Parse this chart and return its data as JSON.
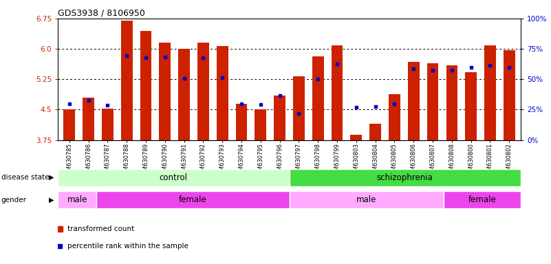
{
  "title": "GDS3938 / 8106950",
  "samples": [
    "GSM630785",
    "GSM630786",
    "GSM630787",
    "GSM630788",
    "GSM630789",
    "GSM630790",
    "GSM630791",
    "GSM630792",
    "GSM630793",
    "GSM630794",
    "GSM630795",
    "GSM630796",
    "GSM630797",
    "GSM630798",
    "GSM630799",
    "GSM630803",
    "GSM630804",
    "GSM630805",
    "GSM630806",
    "GSM630807",
    "GSM630808",
    "GSM630800",
    "GSM630801",
    "GSM630802"
  ],
  "bar_values": [
    4.5,
    4.8,
    4.52,
    6.7,
    6.45,
    6.15,
    6.0,
    6.15,
    6.07,
    4.65,
    4.5,
    4.85,
    5.32,
    5.82,
    6.08,
    3.87,
    4.15,
    4.88,
    5.68,
    5.65,
    5.6,
    5.42,
    6.08,
    5.97
  ],
  "percentile_values": [
    4.65,
    4.72,
    4.6,
    5.83,
    5.78,
    5.8,
    5.27,
    5.78,
    5.28,
    4.65,
    4.63,
    4.85,
    4.4,
    5.25,
    5.62,
    4.55,
    4.58,
    4.65,
    5.5,
    5.48,
    5.47,
    5.55,
    5.6,
    5.55
  ],
  "y_min": 3.75,
  "y_max": 6.75,
  "y_ticks": [
    3.75,
    4.5,
    5.25,
    6.0,
    6.75
  ],
  "right_y_ticks": [
    0,
    25,
    50,
    75,
    100
  ],
  "bar_color": "#cc2200",
  "dot_color": "#0000cc",
  "control_color": "#ccffcc",
  "schizophrenia_color": "#44dd44",
  "male_color": "#ffaaff",
  "female_color": "#ee44ee",
  "grid_color": "#000000",
  "background_color": "#ffffff",
  "gender_groups": [
    {
      "label": "male",
      "start": 0,
      "end": 1
    },
    {
      "label": "female",
      "start": 2,
      "end": 11
    },
    {
      "label": "male",
      "start": 12,
      "end": 19
    },
    {
      "label": "female",
      "start": 20,
      "end": 23
    }
  ]
}
